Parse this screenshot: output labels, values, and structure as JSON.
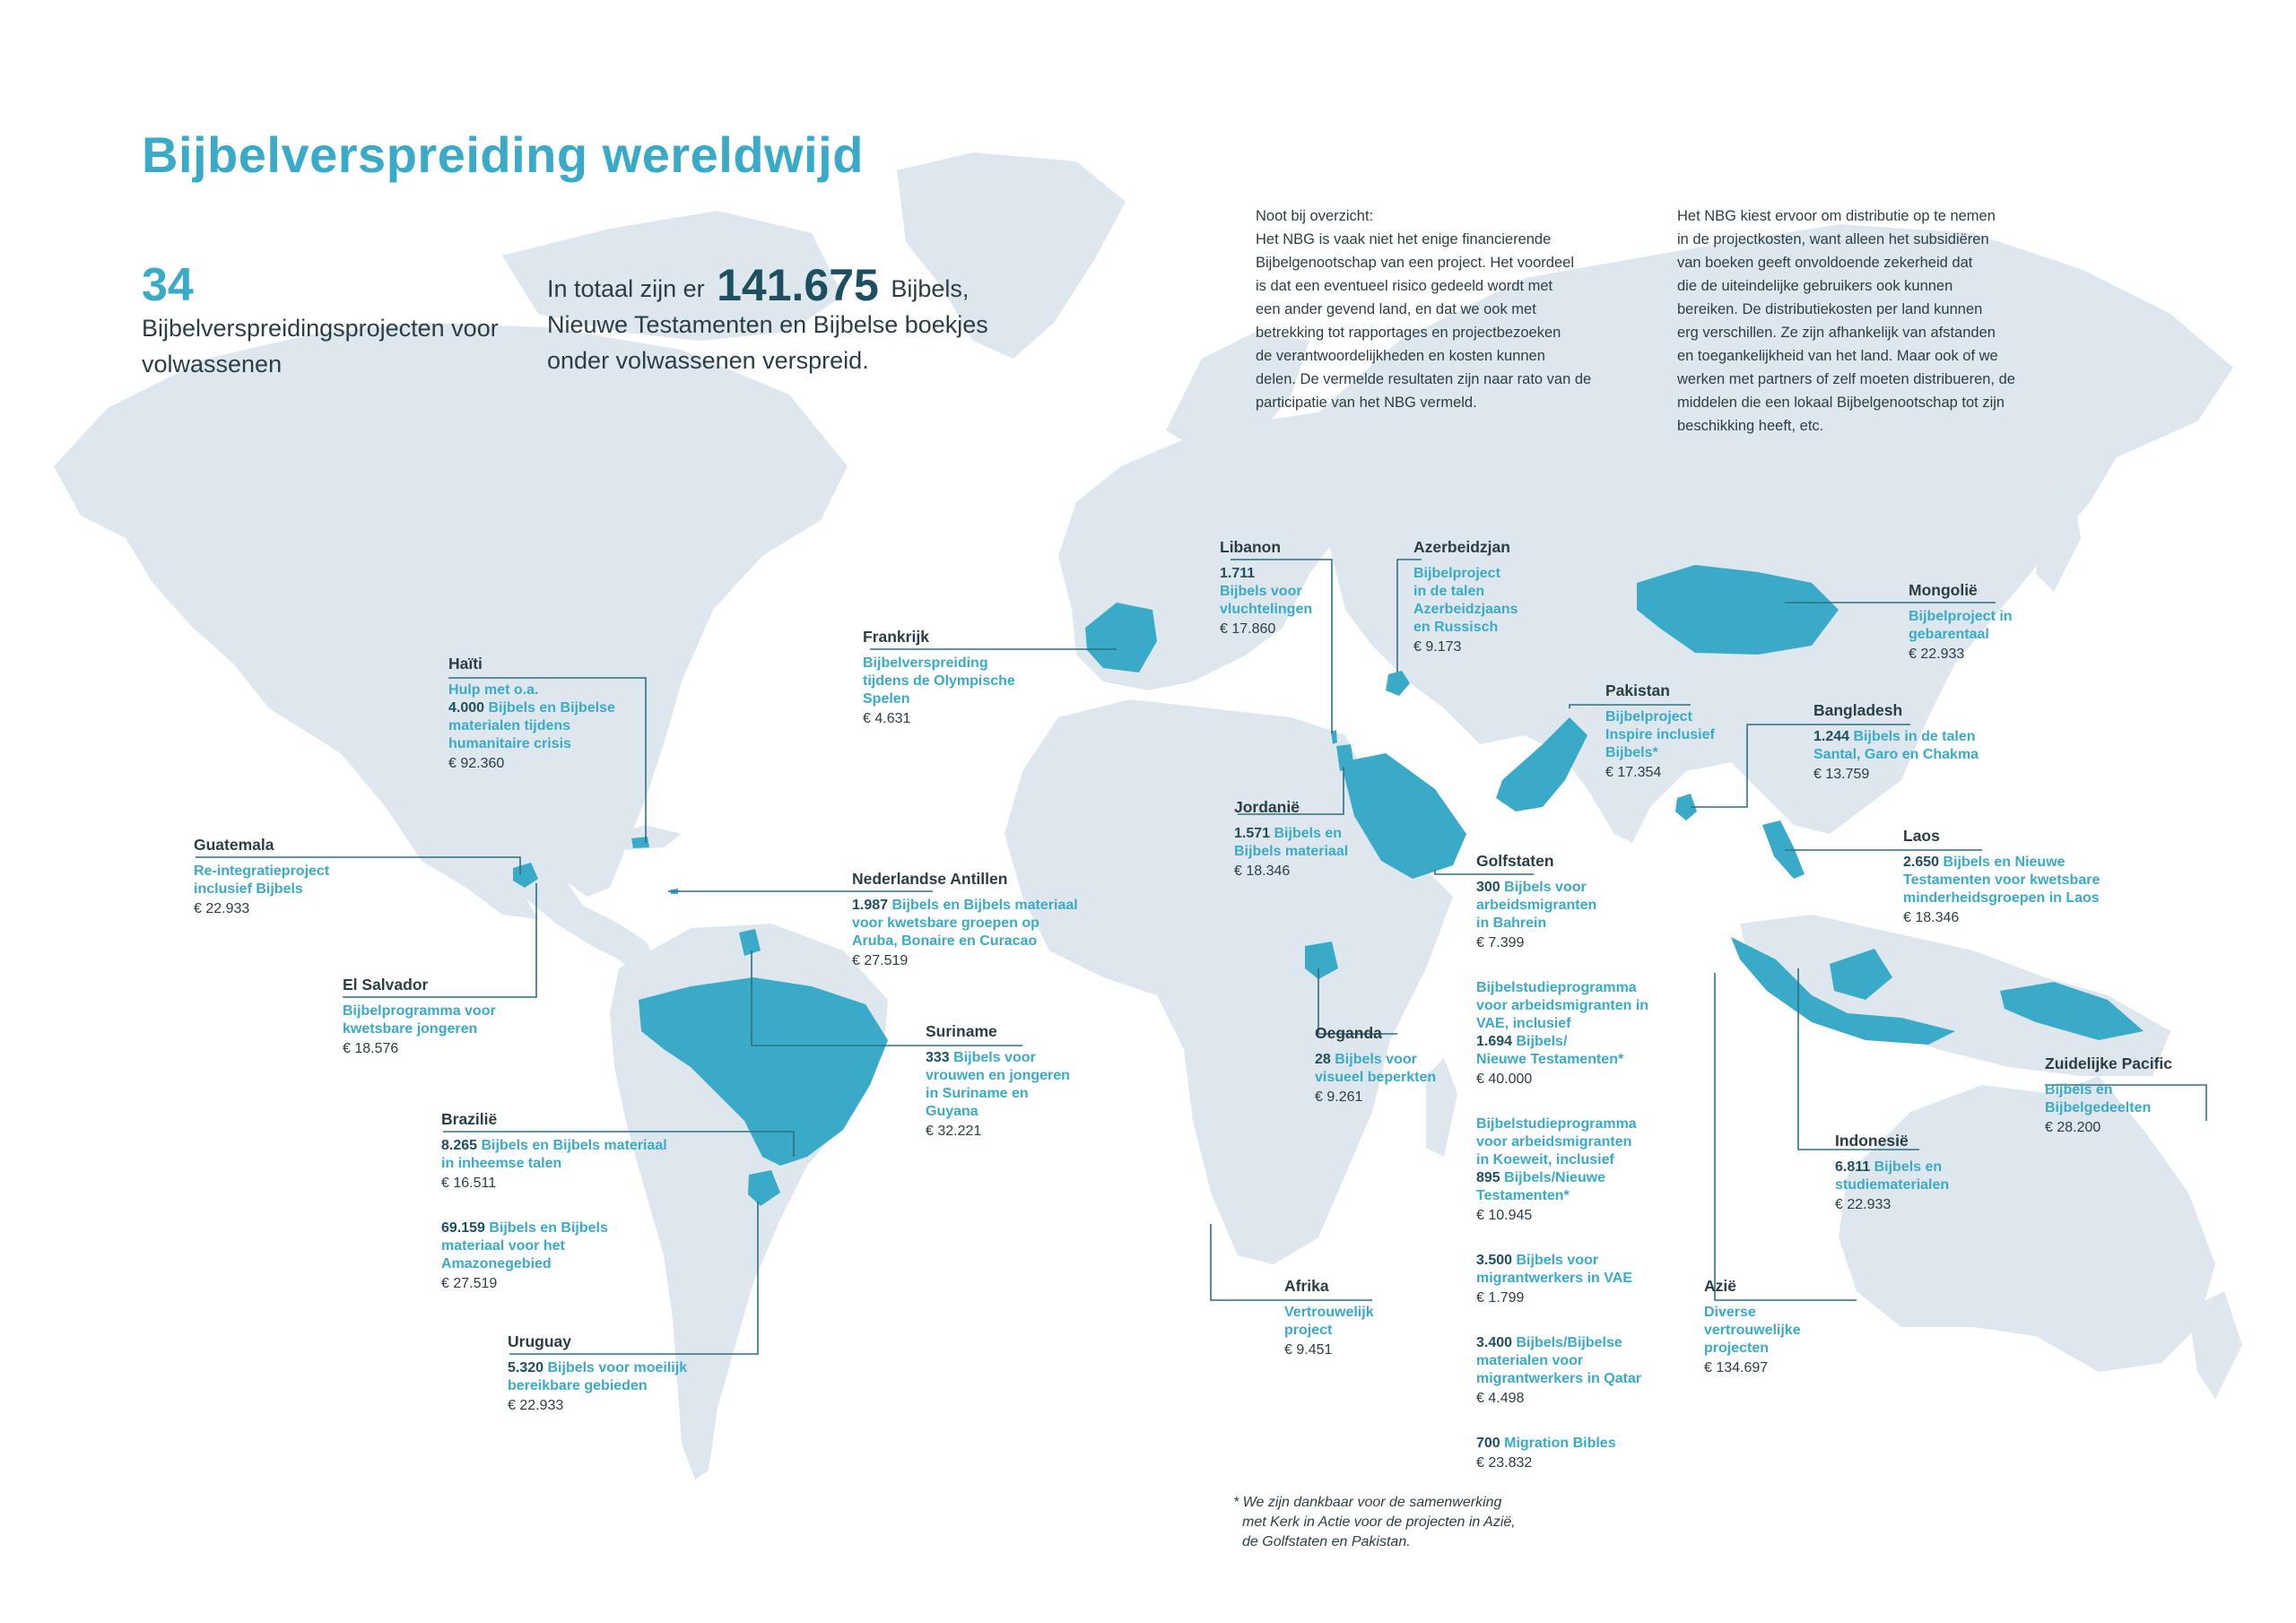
{
  "header": {
    "title": "Bijbelverspreiding wereldwijd",
    "projects_count": "34",
    "projects_text": "Bijbelverspreidingsprojecten voor volwassenen",
    "total_prefix": "In totaal zijn er",
    "total_number": "141.675",
    "total_suffix": "Bijbels,",
    "total_line2": "Nieuwe Testamenten en Bijbelse boekjes",
    "total_line3": "onder volwassenen verspreid."
  },
  "notes": {
    "left": [
      "Noot bij overzicht:",
      "Het NBG is vaak niet het enige financierende",
      "Bijbelgenootschap van een project. Het voordeel",
      "is dat een eventueel risico gedeeld wordt met",
      "een ander gevend land, en dat we ook met",
      "betrekking tot rapportages en projectbezoeken",
      "de verantwoordelijkheden en kosten kunnen",
      "delen. De vermelde resultaten zijn naar rato van de",
      "participatie van het NBG vermeld."
    ],
    "right": [
      "Het NBG kiest ervoor om distributie op te nemen",
      "in de projectkosten, want alleen het subsidiëren",
      "van boeken geeft onvoldoende zekerheid dat",
      "die de uiteindelijke gebruikers ook kunnen",
      "bereiken. De distributiekosten per land kunnen",
      "erg verschillen. Ze zijn afhankelijk van afstanden",
      "en toegankelijkheid van het land. Maar ook of we",
      "werken met partners of zelf moeten distribueren, de",
      "middelen die een lokaal Bijbelgenootschap tot zijn",
      "beschikking heeft, etc."
    ]
  },
  "labels": [
    {
      "id": "haiti",
      "country": "Haïti",
      "entries": [
        {
          "lines": [
            {
              "t": "Hulp met o.a."
            },
            {
              "n": "4.000",
              "t": " Bijbels en Bijbelse"
            },
            {
              "t": "materialen tijdens"
            },
            {
              "t": "humanitaire crisis"
            }
          ],
          "amount": "€ 92.360"
        }
      ]
    },
    {
      "id": "guatemala",
      "country": "Guatemala",
      "entries": [
        {
          "lines": [
            {
              "t": "Re-integratieproject"
            },
            {
              "t": "inclusief Bijbels"
            }
          ],
          "amount": "€ 22.933"
        }
      ]
    },
    {
      "id": "elsalvador",
      "country": "El Salvador",
      "entries": [
        {
          "lines": [
            {
              "t": "Bijbelprogramma voor"
            },
            {
              "t": "kwetsbare jongeren"
            }
          ],
          "amount": "€ 18.576"
        }
      ]
    },
    {
      "id": "brazilie",
      "country": "Brazilië",
      "entries": [
        {
          "lines": [
            {
              "n": "8.265",
              "t": " Bijbels en Bijbels materiaal"
            },
            {
              "t": "in inheemse talen"
            }
          ],
          "amount": "€ 16.511"
        },
        {
          "lines": [
            {
              "n": "69.159",
              "t": " Bijbels en Bijbels"
            },
            {
              "t": "materiaal voor het"
            },
            {
              "t": "Amazonegebied"
            }
          ],
          "amount": "€ 27.519"
        }
      ]
    },
    {
      "id": "uruguay",
      "country": "Uruguay",
      "entries": [
        {
          "lines": [
            {
              "n": "5.320",
              "t": " Bijbels voor moeilijk"
            },
            {
              "t": "bereikbare gebieden"
            }
          ],
          "amount": "€ 22.933"
        }
      ]
    },
    {
      "id": "antillen",
      "country": "Nederlandse Antillen",
      "entries": [
        {
          "lines": [
            {
              "n": "1.987",
              "t": " Bijbels en Bijbels materiaal"
            },
            {
              "t": "voor kwetsbare groepen op"
            },
            {
              "t": "Aruba, Bonaire en Curacao"
            }
          ],
          "amount": "€ 27.519"
        }
      ]
    },
    {
      "id": "suriname",
      "country": "Suriname",
      "entries": [
        {
          "lines": [
            {
              "n": "333",
              "t": " Bijbels voor"
            },
            {
              "t": "vrouwen en jongeren"
            },
            {
              "t": "in Suriname en"
            },
            {
              "t": "Guyana"
            }
          ],
          "amount": "€ 32.221"
        }
      ]
    },
    {
      "id": "frankrijk",
      "country": "Frankrijk",
      "entries": [
        {
          "lines": [
            {
              "t": "Bijbelverspreiding"
            },
            {
              "t": "tijdens de Olympische"
            },
            {
              "t": "Spelen"
            }
          ],
          "amount": "€ 4.631"
        }
      ]
    },
    {
      "id": "libanon",
      "country": "Libanon",
      "entries": [
        {
          "lines": [
            {
              "n": "1.711"
            },
            {
              "t": "Bijbels voor"
            },
            {
              "t": "vluchtelingen"
            }
          ],
          "amount": "€ 17.860"
        }
      ]
    },
    {
      "id": "azerbeidzjan",
      "country": "Azerbeidzjan",
      "entries": [
        {
          "lines": [
            {
              "t": "Bijbelproject"
            },
            {
              "t": "in de talen"
            },
            {
              "t": "Azerbeidzjaans"
            },
            {
              "t": "en Russisch"
            }
          ],
          "amount": "€ 9.173"
        }
      ]
    },
    {
      "id": "jordanie",
      "country": "Jordanië",
      "entries": [
        {
          "lines": [
            {
              "n": "1.571",
              "t": " Bijbels en"
            },
            {
              "t": "Bijbels materiaal"
            }
          ],
          "amount": "€ 18.346"
        }
      ]
    },
    {
      "id": "mongolie",
      "country": "Mongolië",
      "entries": [
        {
          "lines": [
            {
              "t": "Bijbelproject in"
            },
            {
              "t": "gebarentaal"
            }
          ],
          "amount": "€ 22.933"
        }
      ]
    },
    {
      "id": "pakistan",
      "country": "Pakistan",
      "entries": [
        {
          "lines": [
            {
              "t": "Bijbelproject"
            },
            {
              "t": "Inspire inclusief"
            },
            {
              "t": "Bijbels*"
            }
          ],
          "amount": "€ 17.354"
        }
      ]
    },
    {
      "id": "bangladesh",
      "country": "Bangladesh",
      "entries": [
        {
          "lines": [
            {
              "n": "1.244",
              "t": " Bijbels in de talen"
            },
            {
              "t": "Santal, Garo en Chakma"
            }
          ],
          "amount": "€ 13.759"
        }
      ]
    },
    {
      "id": "laos",
      "country": "Laos",
      "entries": [
        {
          "lines": [
            {
              "n": "2.650",
              "t": " Bijbels en Nieuwe"
            },
            {
              "t": "Testamenten voor kwetsbare"
            },
            {
              "t": "minderheidsgroepen in Laos"
            }
          ],
          "amount": "€ 18.346"
        }
      ]
    },
    {
      "id": "golfstaten",
      "country": "Golfstaten",
      "entries": [
        {
          "lines": [
            {
              "n": "300",
              "t": " Bijbels voor"
            },
            {
              "t": "arbeidsmigranten"
            },
            {
              "t": "in Bahrein"
            }
          ],
          "amount": "€ 7.399"
        },
        {
          "lines": [
            {
              "t": "Bijbelstudieprogramma"
            },
            {
              "t": "voor arbeidsmigranten in"
            },
            {
              "t": "VAE, inclusief "
            },
            {
              "n": "1.694",
              "t": " Bijbels/"
            },
            {
              "t": "Nieuwe Testamenten*"
            }
          ],
          "amount": "€ 40.000"
        },
        {
          "lines": [
            {
              "t": "Bijbelstudieprogramma"
            },
            {
              "t": "voor arbeidsmigranten"
            },
            {
              "t": "in Koeweit, inclusief"
            },
            {
              "n": "895",
              "t": " Bijbels/Nieuwe"
            },
            {
              "t": "Testamenten*"
            }
          ],
          "amount": "€ 10.945"
        },
        {
          "lines": [
            {
              "n": "3.500",
              "t": " Bijbels voor"
            },
            {
              "t": "migrantwerkers in VAE"
            }
          ],
          "amount": "€ 1.799"
        },
        {
          "lines": [
            {
              "n": "3.400",
              "t": " Bijbels/Bijbelse"
            },
            {
              "t": "materialen voor"
            },
            {
              "t": "migrantwerkers in Qatar"
            }
          ],
          "amount": "€ 4.498"
        },
        {
          "lines": [
            {
              "n": "700",
              "t": " Migration Bibles"
            }
          ],
          "amount": "€ 23.832"
        }
      ]
    },
    {
      "id": "oeganda",
      "country": "Oeganda",
      "entries": [
        {
          "lines": [
            {
              "n": "28",
              "t": " Bijbels voor"
            },
            {
              "t": "visueel beperkten"
            }
          ],
          "amount": "€ 9.261"
        }
      ]
    },
    {
      "id": "afrika",
      "country": "Afrika",
      "entries": [
        {
          "lines": [
            {
              "t": "Vertrouwelijk"
            },
            {
              "t": "project"
            }
          ],
          "amount": "€ 9.451"
        }
      ]
    },
    {
      "id": "azie",
      "country": "Azië",
      "entries": [
        {
          "lines": [
            {
              "t": "Diverse"
            },
            {
              "t": "vertrouwelijke"
            },
            {
              "t": "projecten"
            }
          ],
          "amount": "€ 134.697"
        }
      ]
    },
    {
      "id": "indonesie",
      "country": "Indonesië",
      "entries": [
        {
          "lines": [
            {
              "n": "6.811",
              "t": " Bijbels en"
            },
            {
              "t": "studiematerialen"
            }
          ],
          "amount": "€ 22.933"
        }
      ]
    },
    {
      "id": "pacific",
      "country": "Zuidelijke Pacific",
      "entries": [
        {
          "lines": [
            {
              "t": "Bijbels en"
            },
            {
              "t": "Bijbelgedeelten"
            }
          ],
          "amount": "€ 28.200"
        }
      ]
    }
  ],
  "footnote": [
    "* We zijn dankbaar voor de samenwerking",
    "met Kerk in Actie voor de projecten in Azië,",
    "de Golfstaten en Pakistan."
  ],
  "colors": {
    "land": "#dde7ed",
    "highlight": "#3aaac9",
    "accent": "#3aaac9",
    "text": "#2c3e45"
  }
}
